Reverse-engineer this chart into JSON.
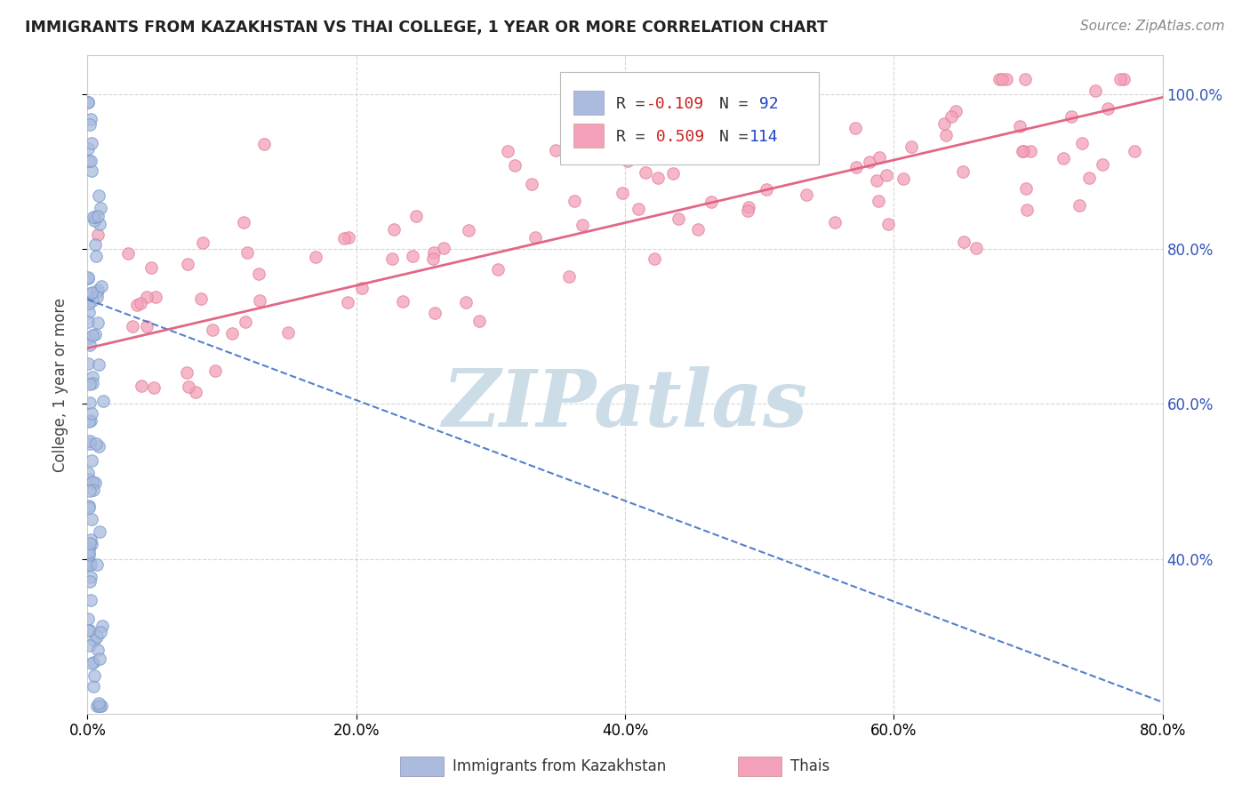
{
  "title": "IMMIGRANTS FROM KAZAKHSTAN VS THAI COLLEGE, 1 YEAR OR MORE CORRELATION CHART",
  "source": "Source: ZipAtlas.com",
  "ylabel": "College, 1 year or more",
  "xlim": [
    0.0,
    0.8
  ],
  "ylim": [
    0.2,
    1.05
  ],
  "xtick_vals": [
    0.0,
    0.2,
    0.4,
    0.6,
    0.8
  ],
  "xtick_labels": [
    "0.0%",
    "20.0%",
    "40.0%",
    "60.0%",
    "80.0%"
  ],
  "ytick_vals": [
    0.4,
    0.6,
    0.8,
    1.0
  ],
  "ytick_labels": [
    "40.0%",
    "60.0%",
    "80.0%",
    "100.0%"
  ],
  "r_kaz": "-0.109",
  "n_kaz": "92",
  "r_thai": "0.509",
  "n_thai": "114",
  "trendline_kaz_color": "#4472c4",
  "trendline_thai_color": "#e0607e",
  "scatter_kaz_color": "#aabbdd",
  "scatter_kaz_edge": "#7799cc",
  "scatter_thai_color": "#f4a0b8",
  "scatter_thai_edge": "#e08099",
  "legend_box_color": "#aabbdd",
  "legend_box_color2": "#f4a0b8",
  "grid_color": "#cccccc",
  "background_color": "#ffffff",
  "watermark": "ZIPatlas",
  "watermark_color": "#ccdde8",
  "title_color": "#222222",
  "source_color": "#888888",
  "ylabel_color": "#444444",
  "ytick_color": "#3355bb",
  "legend_text_color": "#333333",
  "legend_r_color": "#cc2222",
  "legend_n_color": "#2244cc",
  "point_size": 95
}
